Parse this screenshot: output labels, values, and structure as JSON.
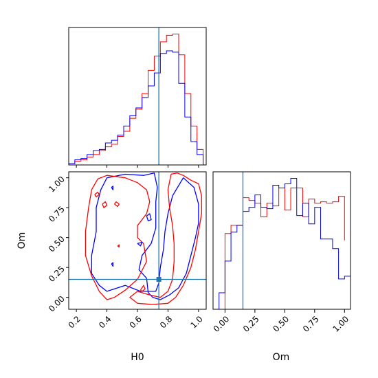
{
  "chart_data": {
    "type": "corner",
    "parameters": [
      "H0",
      "Om"
    ],
    "truth": {
      "H0": 0.74,
      "Om": 0.15
    },
    "colors": {
      "red": "#ff0000",
      "blue": "#0000ff",
      "truth": "#1f77b4"
    },
    "panels": [
      {
        "id": "hist-H0",
        "type": "histogram",
        "xlim": [
          0.15,
          1.05
        ],
        "series": [
          {
            "color": "red",
            "bin_edges": [
              0.15,
              0.19,
              0.23,
              0.27,
              0.31,
              0.35,
              0.39,
              0.43,
              0.47,
              0.51,
              0.55,
              0.59,
              0.63,
              0.67,
              0.71,
              0.75,
              0.79,
              0.83,
              0.87,
              0.91,
              0.95,
              0.99,
              1.03
            ],
            "values": [
              1,
              3,
              4,
              6,
              8,
              11,
              14,
              16,
              22,
              26,
              36,
              43,
              55,
              73,
              84,
              95,
              100,
              101,
              85,
              55,
              30,
              12
            ]
          },
          {
            "color": "blue",
            "bin_edges": [
              0.15,
              0.19,
              0.23,
              0.27,
              0.31,
              0.35,
              0.39,
              0.43,
              0.47,
              0.51,
              0.55,
              0.59,
              0.63,
              0.67,
              0.71,
              0.75,
              0.79,
              0.83,
              0.87,
              0.91,
              0.95,
              0.99,
              1.03
            ],
            "values": [
              1,
              4,
              5,
              8,
              11,
              12,
              17,
              19,
              23,
              30,
              38,
              44,
              52,
              61,
              71,
              86,
              88,
              87,
              63,
              37,
              18,
              8
            ]
          }
        ]
      },
      {
        "id": "hist-Om",
        "type": "histogram",
        "xlim": [
          -0.1,
          1.05
        ],
        "series": [
          {
            "color": "red",
            "bin_edges": [
              -0.05,
              0.0,
              0.05,
              0.1,
              0.15,
              0.2,
              0.25,
              0.3,
              0.35,
              0.4,
              0.45,
              0.5,
              0.55,
              0.6,
              0.65,
              0.7,
              0.75,
              0.8,
              0.85,
              0.9,
              0.95,
              1.0
            ],
            "values": [
              0,
              55,
              61,
              61,
              81,
              79,
              77,
              67,
              77,
              75,
              88,
              72,
              88,
              88,
              67,
              80,
              77,
              78,
              77,
              78,
              82,
              50
            ]
          },
          {
            "color": "blue",
            "bin_edges": [
              -0.1,
              -0.05,
              0.0,
              0.05,
              0.1,
              0.15,
              0.2,
              0.25,
              0.3,
              0.35,
              0.4,
              0.45,
              0.5,
              0.55,
              0.6,
              0.65,
              0.7,
              0.75,
              0.8,
              0.85,
              0.9,
              0.95,
              1.0,
              1.05
            ],
            "values": [
              0,
              12,
              35,
              56,
              61,
              71,
              74,
              83,
              74,
              73,
              90,
              88,
              91,
              95,
              68,
              77,
              62,
              74,
              51,
              51,
              44,
              22,
              24
            ]
          }
        ]
      },
      {
        "id": "contour-H0-Om",
        "type": "contour",
        "xlim": [
          0.15,
          1.05
        ],
        "ylim": [
          -0.1,
          1.05
        ],
        "contours": [
          {
            "color": "blue",
            "points": [
              [
                0.4,
                1.0
              ],
              [
                0.52,
                1.03
              ],
              [
                0.64,
                1.02
              ],
              [
                0.71,
                1.04
              ],
              [
                0.73,
                0.92
              ],
              [
                0.72,
                0.8
              ],
              [
                0.72,
                0.58
              ],
              [
                0.69,
                0.45
              ],
              [
                0.63,
                0.35
              ],
              [
                0.61,
                0.23
              ],
              [
                0.66,
                0.16
              ],
              [
                0.67,
                0.04
              ],
              [
                0.7,
                0.0
              ],
              [
                0.75,
                -0.02
              ],
              [
                0.81,
                0.02
              ],
              [
                0.87,
                0.08
              ],
              [
                0.92,
                0.2
              ],
              [
                0.95,
                0.35
              ],
              [
                0.98,
                0.5
              ],
              [
                1.0,
                0.62
              ],
              [
                1.0,
                0.78
              ],
              [
                0.97,
                0.92
              ],
              [
                0.9,
                1.0
              ],
              [
                0.83,
                0.85
              ],
              [
                0.8,
                0.7
              ],
              [
                0.78,
                0.55
              ],
              [
                0.77,
                0.4
              ],
              [
                0.75,
                0.25
              ],
              [
                0.74,
                0.12
              ],
              [
                0.72,
                0.05
              ],
              [
                0.62,
                0.05
              ],
              [
                0.52,
                0.1
              ],
              [
                0.4,
                0.05
              ],
              [
                0.35,
                0.1
              ],
              [
                0.3,
                0.2
              ],
              [
                0.3,
                0.35
              ],
              [
                0.33,
                0.55
              ],
              [
                0.33,
                0.75
              ],
              [
                0.36,
                0.9
              ],
              [
                0.4,
                1.0
              ]
            ]
          },
          {
            "color": "red",
            "points": [
              [
                0.34,
                0.99
              ],
              [
                0.4,
                1.02
              ],
              [
                0.52,
                1.0
              ],
              [
                0.6,
                0.96
              ],
              [
                0.66,
                0.9
              ],
              [
                0.68,
                0.8
              ],
              [
                0.66,
                0.7
              ],
              [
                0.6,
                0.6
              ],
              [
                0.6,
                0.5
              ],
              [
                0.64,
                0.45
              ],
              [
                0.66,
                0.3
              ],
              [
                0.6,
                0.15
              ],
              [
                0.52,
                0.06
              ],
              [
                0.45,
                0.0
              ],
              [
                0.4,
                -0.02
              ],
              [
                0.35,
                0.05
              ],
              [
                0.3,
                0.18
              ],
              [
                0.26,
                0.35
              ],
              [
                0.26,
                0.55
              ],
              [
                0.28,
                0.75
              ],
              [
                0.3,
                0.9
              ],
              [
                0.34,
                0.99
              ]
            ]
          },
          {
            "color": "red",
            "points": [
              [
                0.82,
                1.03
              ],
              [
                0.86,
                1.04
              ],
              [
                0.9,
                1.02
              ],
              [
                0.95,
                0.98
              ],
              [
                1.0,
                0.95
              ],
              [
                1.02,
                0.85
              ],
              [
                1.02,
                0.7
              ],
              [
                1.0,
                0.55
              ],
              [
                0.98,
                0.4
              ],
              [
                0.95,
                0.25
              ],
              [
                0.9,
                0.1
              ],
              [
                0.85,
                0.0
              ],
              [
                0.8,
                -0.05
              ],
              [
                0.7,
                -0.06
              ],
              [
                0.6,
                -0.05
              ],
              [
                0.55,
                0.0
              ],
              [
                0.6,
                0.05
              ],
              [
                0.68,
                0.02
              ],
              [
                0.75,
                0.0
              ],
              [
                0.8,
                0.05
              ],
              [
                0.83,
                0.15
              ],
              [
                0.84,
                0.3
              ],
              [
                0.84,
                0.45
              ],
              [
                0.83,
                0.6
              ],
              [
                0.81,
                0.75
              ],
              [
                0.8,
                0.9
              ],
              [
                0.82,
                1.03
              ]
            ]
          },
          {
            "color": "red",
            "points": [
              [
                0.37,
                0.78
              ],
              [
                0.39,
                0.8
              ],
              [
                0.4,
                0.77
              ],
              [
                0.38,
                0.75
              ],
              [
                0.37,
                0.78
              ]
            ]
          },
          {
            "color": "red",
            "points": [
              [
                0.46,
                0.8
              ],
              [
                0.48,
                0.78
              ],
              [
                0.47,
                0.76
              ],
              [
                0.45,
                0.78
              ],
              [
                0.46,
                0.8
              ]
            ]
          },
          {
            "color": "red",
            "points": [
              [
                0.32,
                0.86
              ],
              [
                0.34,
                0.88
              ],
              [
                0.35,
                0.86
              ],
              [
                0.33,
                0.84
              ],
              [
                0.32,
                0.86
              ]
            ]
          },
          {
            "color": "blue",
            "points": [
              [
                0.43,
                0.92
              ],
              [
                0.44,
                0.93
              ],
              [
                0.44,
                0.9
              ],
              [
                0.43,
                0.92
              ]
            ]
          },
          {
            "color": "blue",
            "points": [
              [
                0.6,
                0.45
              ],
              [
                0.63,
                0.46
              ],
              [
                0.62,
                0.43
              ],
              [
                0.6,
                0.45
              ]
            ]
          },
          {
            "color": "blue",
            "points": [
              [
                0.66,
                0.68
              ],
              [
                0.68,
                0.7
              ],
              [
                0.69,
                0.65
              ],
              [
                0.67,
                0.64
              ],
              [
                0.66,
                0.68
              ]
            ]
          },
          {
            "color": "red",
            "points": [
              [
                0.62,
                0.06
              ],
              [
                0.64,
                0.1
              ],
              [
                0.65,
                0.07
              ],
              [
                0.63,
                0.05
              ],
              [
                0.62,
                0.06
              ]
            ]
          },
          {
            "color": "red",
            "points": [
              [
                0.47,
                0.43
              ],
              [
                0.48,
                0.44
              ],
              [
                0.48,
                0.42
              ],
              [
                0.47,
                0.43
              ]
            ]
          },
          {
            "color": "blue",
            "points": [
              [
                0.43,
                0.28
              ],
              [
                0.44,
                0.29
              ],
              [
                0.44,
                0.26
              ],
              [
                0.43,
                0.28
              ]
            ]
          }
        ]
      }
    ],
    "axes": {
      "H0": {
        "label": "H0",
        "ticks": [
          0.2,
          0.4,
          0.6,
          0.8,
          1.0
        ],
        "tick_labels": [
          "0.2",
          "0.4",
          "0.6",
          "0.8",
          "1.0"
        ]
      },
      "Om_y": {
        "label": "Om",
        "ticks": [
          0.0,
          0.25,
          0.5,
          0.75,
          1.0
        ],
        "tick_labels": [
          "0.00",
          "0.25",
          "0.50",
          "0.75",
          "1.00"
        ]
      },
      "Om_x": {
        "label": "Om",
        "ticks": [
          0.0,
          0.25,
          0.5,
          0.75,
          1.0
        ],
        "tick_labels": [
          "0.00",
          "0.25",
          "0.50",
          "0.75",
          "1.00"
        ]
      }
    }
  }
}
